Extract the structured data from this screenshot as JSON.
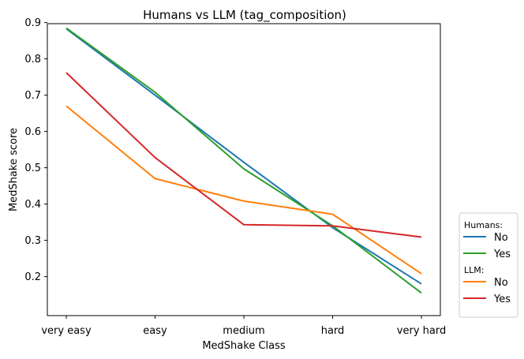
{
  "chart_data": {
    "type": "line",
    "title": "Humans vs LLM (tag_composition)",
    "xlabel": "MedShake Class",
    "ylabel": "MedShake score",
    "categories": [
      "very easy",
      "easy",
      "medium",
      "hard",
      "very hard"
    ],
    "ylim": [
      0.12,
      0.92
    ],
    "yticks": [
      0.2,
      0.3,
      0.4,
      0.5,
      0.6,
      0.7,
      0.8,
      0.9
    ],
    "grid": false,
    "legend_position": "outside-bottom-right",
    "legend_groups": [
      {
        "heading": "Humans:",
        "series": [
          {
            "name": "No",
            "color": "#1f77b4",
            "values": [
              0.883,
              0.7,
              0.515,
              0.335,
              0.18
            ]
          },
          {
            "name": "Yes",
            "color": "#2ca02c",
            "values": [
              0.885,
              0.708,
              0.497,
              0.34,
              0.155
            ]
          }
        ]
      },
      {
        "heading": "LLM:",
        "series": [
          {
            "name": "No",
            "color": "#ff7f0e",
            "values": [
              0.67,
              0.47,
              0.408,
              0.372,
              0.208
            ]
          },
          {
            "name": "Yes",
            "color": "#d62728",
            "values": [
              0.762,
              0.528,
              0.343,
              0.34,
              0.309
            ]
          }
        ]
      }
    ]
  }
}
